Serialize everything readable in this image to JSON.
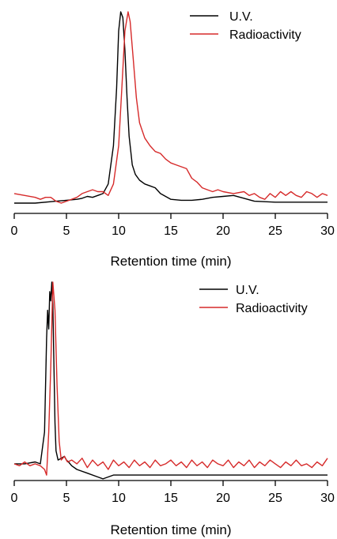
{
  "chart_data": [
    {
      "type": "line",
      "title": "",
      "xlabel": "Retention time (min)",
      "ylabel": "",
      "xlim": [
        0,
        30
      ],
      "xticks": [
        0,
        5,
        10,
        15,
        20,
        25,
        30
      ],
      "ylim": [
        0,
        1.0
      ],
      "grid": false,
      "legend_position": "top-right",
      "series": [
        {
          "name": "U.V.",
          "color": "#000000",
          "x": [
            0,
            2,
            4,
            5,
            6,
            6.5,
            7,
            7.5,
            8,
            8.5,
            9,
            9.5,
            9.8,
            10.0,
            10.2,
            10.4,
            10.6,
            10.8,
            11.0,
            11.3,
            11.6,
            12.0,
            12.5,
            13.0,
            13.5,
            14.0,
            15.0,
            16.0,
            17.0,
            18.0,
            19.0,
            20.0,
            21.0,
            22.0,
            23.0,
            25.0,
            27.0,
            30.0
          ],
          "y": [
            0.0,
            0.0,
            0.01,
            0.015,
            0.02,
            0.025,
            0.035,
            0.03,
            0.04,
            0.05,
            0.1,
            0.3,
            0.6,
            0.9,
            1.0,
            0.97,
            0.8,
            0.55,
            0.35,
            0.2,
            0.15,
            0.12,
            0.1,
            0.09,
            0.08,
            0.05,
            0.02,
            0.015,
            0.015,
            0.02,
            0.03,
            0.035,
            0.04,
            0.025,
            0.01,
            0.005,
            0.005,
            0.005
          ]
        },
        {
          "name": "Radioactivity",
          "color": "#d62a2a",
          "x": [
            0,
            1,
            2,
            2.5,
            3,
            3.5,
            4,
            4.5,
            5,
            5.5,
            6,
            6.5,
            7,
            7.5,
            8,
            8.5,
            9,
            9.5,
            10.0,
            10.3,
            10.6,
            10.9,
            11.1,
            11.4,
            11.7,
            12.0,
            12.5,
            13.0,
            13.5,
            14.0,
            14.5,
            15.0,
            15.5,
            16.0,
            16.5,
            17.0,
            17.5,
            18.0,
            18.5,
            19.0,
            19.5,
            20.0,
            21.0,
            22.0,
            22.5,
            23.0,
            23.5,
            24.0,
            24.5,
            25.0,
            25.5,
            26.0,
            26.5,
            27.0,
            27.5,
            28.0,
            28.5,
            29.0,
            29.5,
            30.0
          ],
          "y": [
            0.05,
            0.04,
            0.03,
            0.02,
            0.03,
            0.03,
            0.01,
            0.0,
            0.01,
            0.02,
            0.03,
            0.05,
            0.06,
            0.07,
            0.06,
            0.06,
            0.04,
            0.1,
            0.3,
            0.6,
            0.9,
            1.0,
            0.95,
            0.75,
            0.55,
            0.42,
            0.34,
            0.3,
            0.27,
            0.26,
            0.23,
            0.21,
            0.2,
            0.19,
            0.18,
            0.13,
            0.11,
            0.08,
            0.07,
            0.06,
            0.07,
            0.06,
            0.05,
            0.06,
            0.04,
            0.05,
            0.03,
            0.02,
            0.05,
            0.03,
            0.06,
            0.04,
            0.06,
            0.04,
            0.03,
            0.06,
            0.05,
            0.03,
            0.05,
            0.04
          ]
        }
      ]
    },
    {
      "type": "line",
      "title": "",
      "xlabel": "Retention time (min)",
      "ylabel": "",
      "xlim": [
        0,
        30
      ],
      "xticks": [
        0,
        5,
        10,
        15,
        20,
        25,
        30
      ],
      "ylim": [
        0,
        1.0
      ],
      "grid": false,
      "legend_position": "top-right",
      "series": [
        {
          "name": "U.V.",
          "color": "#000000",
          "x": [
            0,
            1,
            2,
            2.5,
            2.9,
            3.1,
            3.2,
            3.3,
            3.4,
            3.5,
            3.6,
            3.7,
            3.8,
            3.9,
            4.0,
            4.2,
            4.5,
            4.8,
            5.0,
            5.2,
            5.5,
            6.0,
            7.0,
            8.0,
            8.5,
            9.0,
            9.5,
            10.0,
            12.0,
            15.0,
            20.0,
            25.0,
            30.0
          ],
          "y": [
            0.03,
            0.03,
            0.04,
            0.03,
            0.2,
            0.7,
            0.85,
            0.75,
            0.95,
            0.9,
            1.0,
            0.88,
            0.55,
            0.25,
            0.1,
            0.05,
            0.06,
            0.07,
            0.05,
            0.04,
            0.02,
            0.0,
            -0.02,
            -0.04,
            -0.05,
            -0.04,
            -0.03,
            -0.03,
            -0.03,
            -0.03,
            -0.03,
            -0.03,
            -0.03
          ]
        },
        {
          "name": "Radioactivity",
          "color": "#d62a2a",
          "x": [
            0,
            0.5,
            1.0,
            1.5,
            2.0,
            2.5,
            2.9,
            3.1,
            3.3,
            3.5,
            3.7,
            3.9,
            4.1,
            4.3,
            4.5,
            4.8,
            5.1,
            5.5,
            6.0,
            6.5,
            7.0,
            7.5,
            8.0,
            8.5,
            9.0,
            9.5,
            10.0,
            10.5,
            11.0,
            11.5,
            12.0,
            12.5,
            13.0,
            13.5,
            14.0,
            14.5,
            15.0,
            15.5,
            16.0,
            16.5,
            17.0,
            17.5,
            18.0,
            18.5,
            19.0,
            19.5,
            20.0,
            20.5,
            21.0,
            21.5,
            22.0,
            22.5,
            23.0,
            23.5,
            24.0,
            24.5,
            25.0,
            25.5,
            26.0,
            26.5,
            27.0,
            27.5,
            28.0,
            28.5,
            29.0,
            29.5,
            30.0
          ],
          "y": [
            0.03,
            0.02,
            0.04,
            0.02,
            0.03,
            0.02,
            0.0,
            -0.03,
            0.2,
            0.55,
            1.0,
            0.85,
            0.45,
            0.15,
            0.05,
            0.07,
            0.04,
            0.05,
            0.03,
            0.06,
            0.01,
            0.05,
            0.02,
            0.04,
            0.0,
            0.05,
            0.02,
            0.04,
            0.01,
            0.05,
            0.02,
            0.04,
            0.01,
            0.05,
            0.02,
            0.03,
            0.05,
            0.02,
            0.04,
            0.01,
            0.05,
            0.02,
            0.04,
            0.01,
            0.05,
            0.03,
            0.02,
            0.05,
            0.01,
            0.04,
            0.02,
            0.05,
            0.01,
            0.04,
            0.02,
            0.05,
            0.03,
            0.01,
            0.04,
            0.02,
            0.05,
            0.02,
            0.03,
            0.01,
            0.04,
            0.02,
            0.06
          ]
        }
      ]
    }
  ]
}
